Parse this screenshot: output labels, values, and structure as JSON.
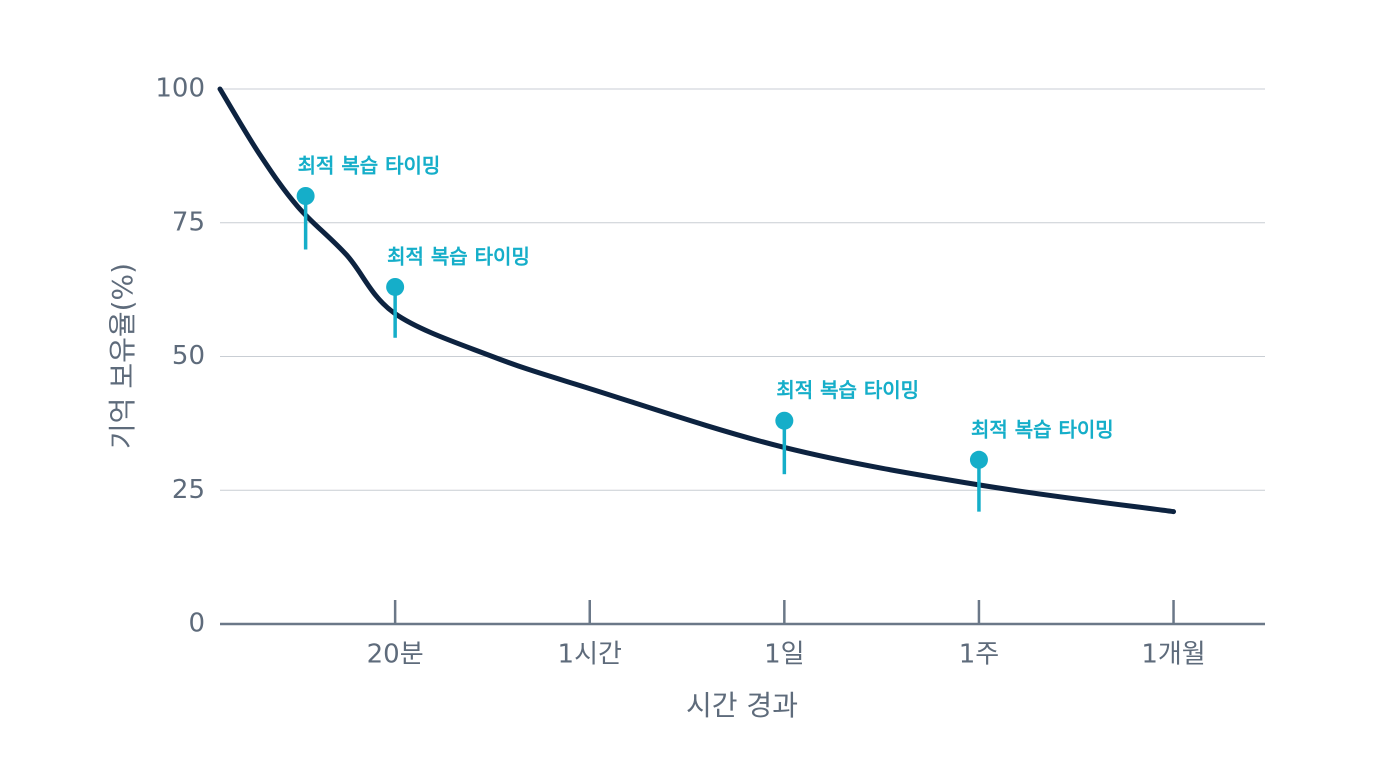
{
  "chart_data": {
    "type": "line",
    "x_label": "시간 경과",
    "y_label": "기억 보유율(%)",
    "x": [
      0.1,
      0.3,
      0.5,
      0.75,
      1,
      1.5,
      2,
      3,
      4,
      5
    ],
    "values": [
      100,
      88,
      78,
      69,
      58,
      50,
      44,
      33,
      26,
      21
    ],
    "color": "#0d2340",
    "xlim": [
      0.1,
      5.47
    ],
    "xticks": [
      {
        "value": 1,
        "label": "20분"
      },
      {
        "value": 2,
        "label": "1시간"
      },
      {
        "value": 3,
        "label": "1일"
      },
      {
        "value": 4,
        "label": "1주"
      },
      {
        "value": 5,
        "label": "1개월"
      }
    ],
    "ylim": [
      0,
      100
    ],
    "yticks": [
      0,
      25,
      50,
      75,
      100
    ],
    "grid": true,
    "annotation_color": "#15aec9",
    "annotations": [
      {
        "x": 0.54,
        "y": 80,
        "y_low": 70,
        "label": "최적 복습 타이밍"
      },
      {
        "x": 1,
        "y": 63,
        "y_low": 53.5,
        "label": "최적 복습 타이밍"
      },
      {
        "x": 3,
        "y": 38,
        "y_low": 28,
        "label": "최적 복습 타이밍"
      },
      {
        "x": 4,
        "y": 30.7,
        "y_low": 21,
        "label": "최적 복습 타이밍"
      }
    ]
  }
}
